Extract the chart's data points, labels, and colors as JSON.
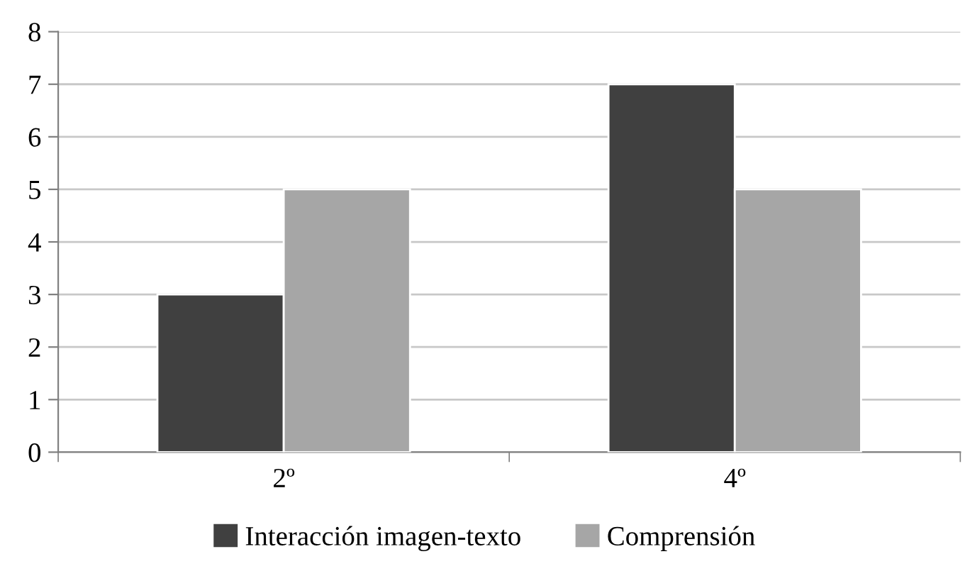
{
  "chart_data": {
    "type": "bar",
    "categories": [
      "2º",
      "4º"
    ],
    "series": [
      {
        "name": "Interacción imagen-texto",
        "color": "#404040",
        "values": [
          3,
          7
        ]
      },
      {
        "name": "Comprensión",
        "color": "#a6a6a6",
        "values": [
          5,
          5
        ]
      }
    ],
    "ylim": [
      0,
      8
    ],
    "yticks": [
      0,
      1,
      2,
      3,
      4,
      5,
      6,
      7,
      8
    ],
    "grid": "y",
    "legend": "bottom"
  }
}
